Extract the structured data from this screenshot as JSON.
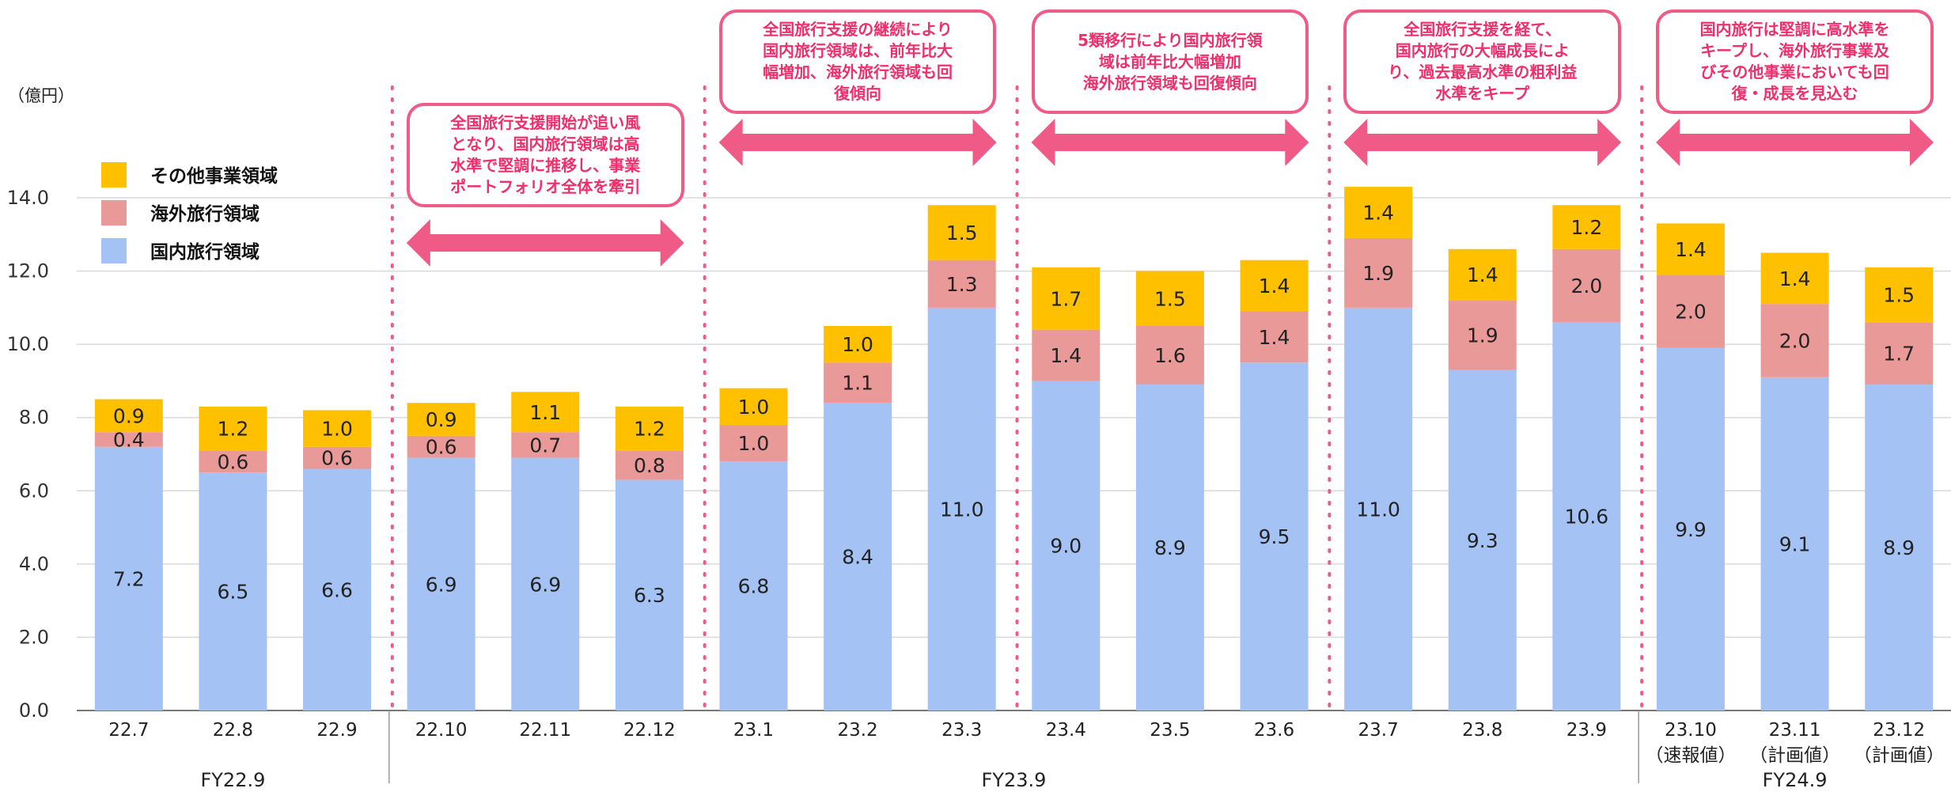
{
  "chart_data": {
    "type": "bar",
    "stacked": true,
    "unit_label": "（億円）",
    "ylim": [
      0,
      14
    ],
    "yticks": [
      "0.0",
      "2.0",
      "4.0",
      "6.0",
      "8.0",
      "10.0",
      "12.0",
      "14.0"
    ],
    "grid": true,
    "legend_position": "top-left",
    "categories": [
      "22.7",
      "22.8",
      "22.9",
      "22.10",
      "22.11",
      "22.12",
      "23.1",
      "23.2",
      "23.3",
      "23.4",
      "23.5",
      "23.6",
      "23.7",
      "23.8",
      "23.9",
      "23.10",
      "23.11",
      "23.12"
    ],
    "category_notes": [
      "",
      "",
      "",
      "",
      "",
      "",
      "",
      "",
      "",
      "",
      "",
      "",
      "",
      "",
      "",
      "（速報値）",
      "（計画値）",
      "（計画値）"
    ],
    "series": [
      {
        "name": "国内旅行領域",
        "color": "#a4c2f4",
        "values": [
          7.2,
          6.5,
          6.6,
          6.9,
          6.9,
          6.3,
          6.8,
          8.4,
          11.0,
          9.0,
          8.9,
          9.5,
          11.0,
          9.3,
          10.6,
          9.9,
          9.1,
          8.9
        ],
        "labels": [
          "7.2",
          "6.5",
          "6.6",
          "6.9",
          "6.9",
          "6.3",
          "6.8",
          "8.4",
          "11.0",
          "9.0",
          "8.9",
          "9.5",
          "11.0",
          "9.3",
          "10.6",
          "9.9",
          "9.1",
          "8.9"
        ]
      },
      {
        "name": "海外旅行領域",
        "color": "#ea9999",
        "values": [
          0.4,
          0.6,
          0.6,
          0.6,
          0.7,
          0.8,
          1.0,
          1.1,
          1.3,
          1.4,
          1.6,
          1.4,
          1.9,
          1.9,
          2.0,
          2.0,
          2.0,
          1.7
        ],
        "labels": [
          "0.4",
          "0.6",
          "0.6",
          "0.6",
          "0.7",
          "0.8",
          "1.0",
          "1.1",
          "1.3",
          "1.4",
          "1.6",
          "1.4",
          "1.9",
          "1.9",
          "2.0",
          "2.0",
          "2.0",
          "1.7"
        ]
      },
      {
        "name": "その他事業領域",
        "color": "#ffc000",
        "values": [
          0.9,
          1.2,
          1.0,
          0.9,
          1.1,
          1.2,
          1.0,
          1.0,
          1.5,
          1.7,
          1.5,
          1.4,
          1.4,
          1.4,
          1.2,
          1.4,
          1.4,
          1.5
        ],
        "labels": [
          "0.9",
          "1.2",
          "1.0",
          "0.9",
          "1.1",
          "1.2",
          "1.0",
          "1.0",
          "1.5",
          "1.7",
          "1.5",
          "1.4",
          "1.4",
          "1.4",
          "1.2",
          "1.4",
          "1.4",
          "1.5"
        ]
      }
    ],
    "fiscal_groups": [
      {
        "label": "FY22.9",
        "from": 0,
        "to": 2
      },
      {
        "label": "FY23.9",
        "from": 3,
        "to": 14
      },
      {
        "label": "FY24.9",
        "from": 15,
        "to": 17
      }
    ],
    "annotations": [
      {
        "text": "全国旅行支援開始が追い風\nとなり、国内旅行領域は高\n水準で堅調に推移し、事業\nポートフォリオ全体を牽引",
        "from": 3,
        "to": 5
      },
      {
        "text": "全国旅行支援の継続により\n国内旅行領域は、前年比大\n幅増加、海外旅行領域も回\n復傾向",
        "from": 6,
        "to": 8
      },
      {
        "text": "5類移行により国内旅行領\n域は前年比大幅増加\n海外旅行領域も回復傾向",
        "from": 9,
        "to": 11
      },
      {
        "text": "全国旅行支援を経て、\n国内旅行の大幅成長によ\nり、過去最高水準の粗利益\n水準をキープ",
        "from": 12,
        "to": 14
      },
      {
        "text": "国内旅行は堅調に高水準を\nキープし、海外旅行事業及\nびその他事業においても回\n復・成長を見込む",
        "from": 15,
        "to": 17
      }
    ],
    "annotation_color": "#ef5b86"
  }
}
